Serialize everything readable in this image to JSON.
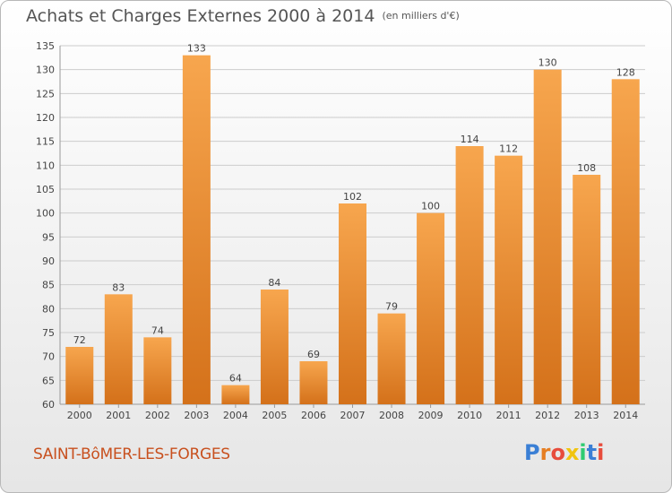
{
  "header": {
    "title": "Achats et Charges Externes 2000 à 2014",
    "unit": "(en milliers d'€)"
  },
  "footer": {
    "commune": "SAINT-BôMER-LES-FORGES",
    "logo_text": "Proxiti",
    "logo_colors": [
      "#3a7fd5",
      "#e67e22",
      "#e74c3c",
      "#f1c40f",
      "#2ecc71",
      "#3a7fd5",
      "#e74c3c"
    ]
  },
  "colors": {
    "bar_light": "#f7a64e",
    "bar_dark": "#d4711a",
    "grid": "#cccccc",
    "text": "#444444"
  },
  "chart_data": {
    "type": "bar",
    "categories": [
      "2000",
      "2001",
      "2002",
      "2003",
      "2004",
      "2005",
      "2006",
      "2007",
      "2008",
      "2009",
      "2010",
      "2011",
      "2012",
      "2013",
      "2014"
    ],
    "values": [
      72,
      83,
      74,
      133,
      64,
      84,
      69,
      102,
      79,
      100,
      114,
      112,
      130,
      108,
      128
    ],
    "ylim": [
      60,
      135
    ],
    "yticks": [
      60,
      65,
      70,
      75,
      80,
      85,
      90,
      95,
      100,
      105,
      110,
      115,
      120,
      125,
      130,
      135
    ],
    "grid": true,
    "data_labels": true
  }
}
